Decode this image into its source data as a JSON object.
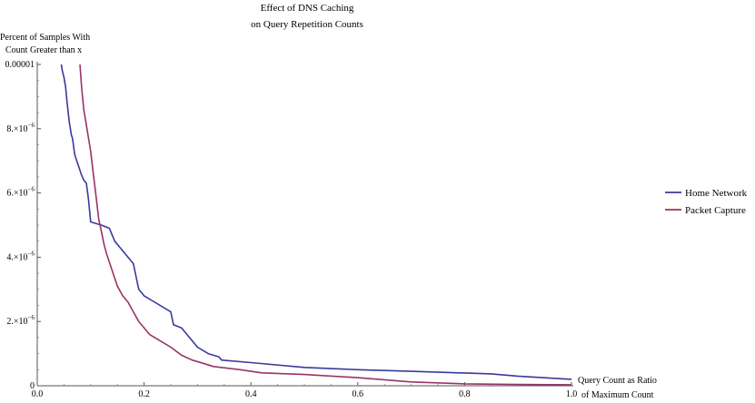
{
  "chart_data": {
    "type": "line",
    "title": [
      "Effect of DNS Caching",
      "on Query Repetition Counts"
    ],
    "ylabel": [
      "Percent of Samples With",
      "Count Greater than x"
    ],
    "xlabel": [
      "Query Count as Ratio",
      "of Maximum Count"
    ],
    "xlim": [
      0,
      1.0
    ],
    "ylim": [
      0,
      1e-05
    ],
    "x_ticks": [
      {
        "value": 0.0,
        "label": "0.0"
      },
      {
        "value": 0.2,
        "label": "0.2"
      },
      {
        "value": 0.4,
        "label": "0.4"
      },
      {
        "value": 0.6,
        "label": "0.6"
      },
      {
        "value": 0.8,
        "label": "0.8"
      },
      {
        "value": 1.0,
        "label": "1.0"
      }
    ],
    "y_ticks": [
      {
        "value": 0,
        "label": "0"
      },
      {
        "value": 2e-06,
        "mantissa": "2.",
        "base": "×10",
        "exp": "−6"
      },
      {
        "value": 4e-06,
        "mantissa": "4.",
        "base": "×10",
        "exp": "−6"
      },
      {
        "value": 6e-06,
        "mantissa": "6.",
        "base": "×10",
        "exp": "−6"
      },
      {
        "value": 8e-06,
        "mantissa": "8.",
        "base": "×10",
        "exp": "−6"
      },
      {
        "value": 1e-05,
        "label": "0.00001"
      }
    ],
    "grid": false,
    "legend_position": "right",
    "series": [
      {
        "name": "Home Network",
        "color": "#3a3a9c",
        "points": [
          [
            0.045,
            1e-05
          ],
          [
            0.047,
            9.8e-06
          ],
          [
            0.05,
            9.6e-06
          ],
          [
            0.053,
            9.3e-06
          ],
          [
            0.056,
            8.8e-06
          ],
          [
            0.06,
            8.2e-06
          ],
          [
            0.064,
            7.8e-06
          ],
          [
            0.066,
            7.7e-06
          ],
          [
            0.07,
            7.2e-06
          ],
          [
            0.074,
            7e-06
          ],
          [
            0.078,
            6.8e-06
          ],
          [
            0.082,
            6.6e-06
          ],
          [
            0.087,
            6.4e-06
          ],
          [
            0.092,
            6.3e-06
          ],
          [
            0.096,
            5.8e-06
          ],
          [
            0.1,
            5.1e-06
          ],
          [
            0.12,
            5e-06
          ],
          [
            0.135,
            4.9e-06
          ],
          [
            0.14,
            4.7e-06
          ],
          [
            0.145,
            4.5e-06
          ],
          [
            0.155,
            4.3e-06
          ],
          [
            0.165,
            4.1e-06
          ],
          [
            0.18,
            3.8e-06
          ],
          [
            0.19,
            3e-06
          ],
          [
            0.2,
            2.8e-06
          ],
          [
            0.22,
            2.6e-06
          ],
          [
            0.25,
            2.3e-06
          ],
          [
            0.255,
            1.9e-06
          ],
          [
            0.27,
            1.8e-06
          ],
          [
            0.285,
            1.5e-06
          ],
          [
            0.3,
            1.2e-06
          ],
          [
            0.32,
            1e-06
          ],
          [
            0.34,
            9e-07
          ],
          [
            0.345,
            8e-07
          ],
          [
            0.4,
            7.2e-07
          ],
          [
            0.5,
            5.7e-07
          ],
          [
            0.6,
            5e-07
          ],
          [
            0.7,
            4.5e-07
          ],
          [
            0.85,
            3.7e-07
          ],
          [
            0.9,
            3e-07
          ],
          [
            1.0,
            2e-07
          ]
        ]
      },
      {
        "name": "Packet Capture",
        "color": "#993366",
        "points": [
          [
            0.08,
            1e-05
          ],
          [
            0.083,
            9.3e-06
          ],
          [
            0.087,
            8.6e-06
          ],
          [
            0.093,
            8e-06
          ],
          [
            0.1,
            7.3e-06
          ],
          [
            0.105,
            6.6e-06
          ],
          [
            0.11,
            5.9e-06
          ],
          [
            0.115,
            5.2e-06
          ],
          [
            0.12,
            4.8e-06
          ],
          [
            0.125,
            4.4e-06
          ],
          [
            0.13,
            4.1e-06
          ],
          [
            0.14,
            3.6e-06
          ],
          [
            0.15,
            3.1e-06
          ],
          [
            0.16,
            2.8e-06
          ],
          [
            0.17,
            2.6e-06
          ],
          [
            0.18,
            2.3e-06
          ],
          [
            0.19,
            2e-06
          ],
          [
            0.2,
            1.8e-06
          ],
          [
            0.21,
            1.6e-06
          ],
          [
            0.23,
            1.4e-06
          ],
          [
            0.25,
            1.2e-06
          ],
          [
            0.27,
            9.5e-07
          ],
          [
            0.29,
            8e-07
          ],
          [
            0.31,
            7e-07
          ],
          [
            0.33,
            6e-07
          ],
          [
            0.38,
            5e-07
          ],
          [
            0.42,
            4e-07
          ],
          [
            0.5,
            3.5e-07
          ],
          [
            0.6,
            2.5e-07
          ],
          [
            0.7,
            1.2e-07
          ],
          [
            0.8,
            6e-08
          ],
          [
            0.9,
            4e-08
          ],
          [
            1.0,
            3e-08
          ]
        ]
      }
    ]
  }
}
